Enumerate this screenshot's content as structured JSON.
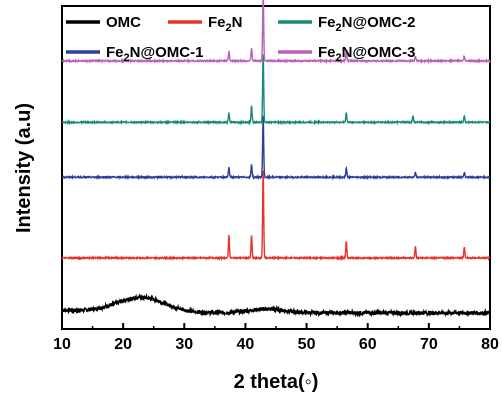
{
  "chart_data": {
    "type": "line",
    "xlabel": "2 theta(◦)",
    "ylabel": "Intensity (a.u)",
    "xlim": [
      10,
      80
    ],
    "xticks": [
      10,
      20,
      30,
      40,
      50,
      60,
      70,
      80
    ],
    "yticks_shown": false,
    "grid": false,
    "legend_placement": "top",
    "series": [
      {
        "name": "OMC",
        "sub": "",
        "color": "#000000",
        "offset": 0.05,
        "kind": "amorphous",
        "peaks": []
      },
      {
        "name": "Fe",
        "sub": "2",
        "suffix": "N",
        "color": "#e8332a",
        "offset": 0.22,
        "peaks": [
          [
            37.3,
            0.07
          ],
          [
            41.0,
            0.07
          ],
          [
            42.9,
            0.27
          ],
          [
            56.5,
            0.05
          ],
          [
            67.8,
            0.035
          ],
          [
            75.8,
            0.035
          ]
        ]
      },
      {
        "name": "Fe",
        "sub": "2",
        "suffix": "N@OMC-1",
        "color": "#2e3d9a",
        "offset": 0.47,
        "peaks": [
          [
            37.3,
            0.03
          ],
          [
            41.0,
            0.04
          ],
          [
            42.9,
            0.19
          ],
          [
            56.5,
            0.03
          ],
          [
            67.8,
            0.015
          ],
          [
            75.8,
            0.015
          ]
        ]
      },
      {
        "name": "Fe",
        "sub": "2",
        "suffix": "N@OMC-2",
        "color": "#1a8a78",
        "offset": 0.64,
        "peaks": [
          [
            37.3,
            0.03
          ],
          [
            41.0,
            0.05
          ],
          [
            42.9,
            0.21
          ],
          [
            56.5,
            0.03
          ],
          [
            67.4,
            0.02
          ],
          [
            75.8,
            0.02
          ]
        ]
      },
      {
        "name": "Fe",
        "sub": "2",
        "suffix": "N@OMC-3",
        "color": "#bb5fb8",
        "offset": 0.83,
        "peaks": [
          [
            37.3,
            0.03
          ],
          [
            41.0,
            0.04
          ],
          [
            42.9,
            0.21
          ],
          [
            56.5,
            0.03
          ],
          [
            67.8,
            0.015
          ],
          [
            75.8,
            0.015
          ]
        ]
      }
    ]
  }
}
